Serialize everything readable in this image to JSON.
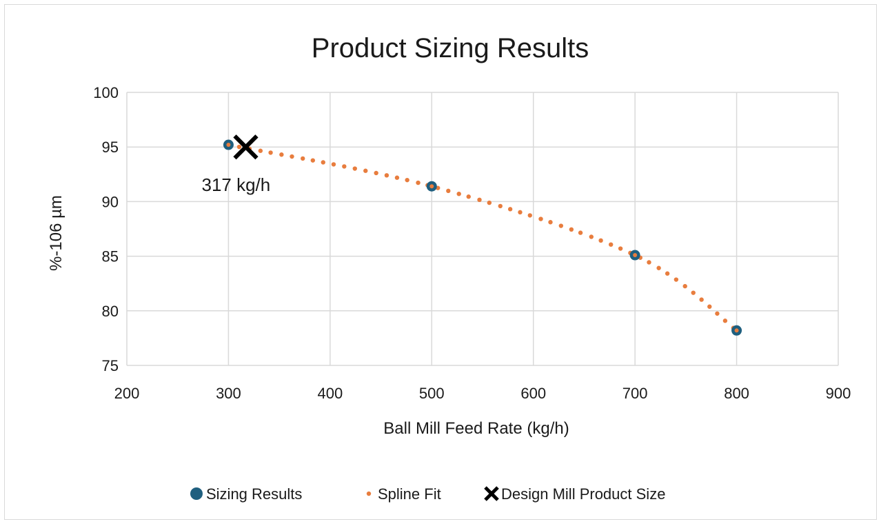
{
  "chart_data": {
    "type": "scatter",
    "title": "Product Sizing Results",
    "xlabel": "Ball Mill Feed Rate (kg/h)",
    "ylabel": "%-106 µm",
    "xlim": [
      200,
      900
    ],
    "ylim": [
      75,
      100
    ],
    "x_ticks": [
      "200",
      "300",
      "400",
      "500",
      "600",
      "700",
      "800",
      "900"
    ],
    "y_ticks": [
      "75",
      "80",
      "85",
      "90",
      "95",
      "100"
    ],
    "grid": true,
    "legend_position": "bottom",
    "series": [
      {
        "name": "Sizing Results",
        "marker": "circle",
        "color": "#1f5f7f",
        "x": [
          300,
          500,
          700,
          800
        ],
        "y": [
          95.2,
          91.4,
          85.1,
          78.2
        ]
      },
      {
        "name": "Spline Fit",
        "marker": "dotted-line",
        "color": "#e87d3e",
        "x": [
          300,
          500,
          700,
          800
        ],
        "y": [
          95.2,
          91.4,
          85.1,
          78.2
        ]
      },
      {
        "name": "Design Mill Product Size",
        "marker": "x",
        "color": "#000000",
        "x": [
          317
        ],
        "y": [
          95.0
        ]
      }
    ],
    "annotations": [
      {
        "text": "317 kg/h",
        "x": 317,
        "y": 95.0
      }
    ]
  }
}
